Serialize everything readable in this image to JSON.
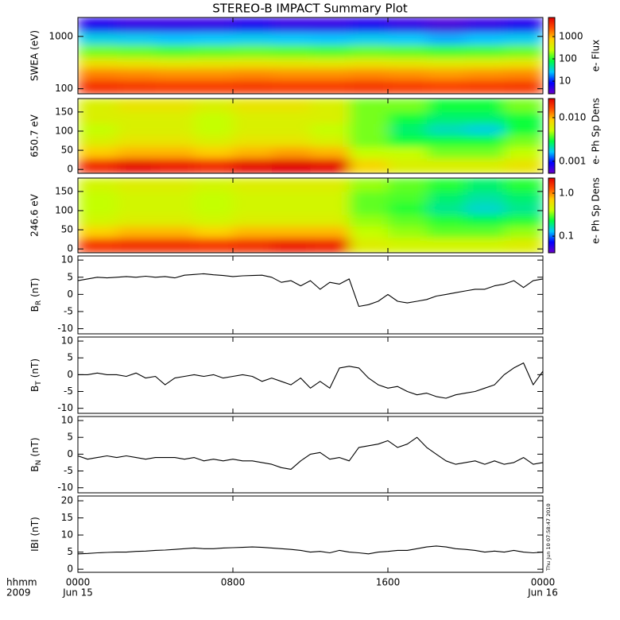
{
  "title": "STEREO-B IMPACT Summary Plot",
  "timestamp": "Thu Jun 10 07:58:47 2010",
  "xaxis": {
    "xlim": [
      0,
      24
    ],
    "xticks": [
      {
        "value": 0,
        "label": "0000"
      },
      {
        "value": 8,
        "label": "0800"
      },
      {
        "value": 16,
        "label": "1600"
      },
      {
        "value": 24,
        "label": "0000"
      }
    ],
    "dates": [
      {
        "value": 0,
        "label": "Jun 15"
      },
      {
        "value": 24,
        "label": "Jun 16"
      }
    ],
    "caption": [
      "hhmm",
      "2009"
    ]
  },
  "chart_data": [
    {
      "type": "heatmap",
      "ylabel": "SWEA (eV)",
      "ylog": true,
      "ylim": [
        80,
        2300
      ],
      "yticks": [
        100,
        1000
      ],
      "xbins": [
        0,
        2,
        4,
        6,
        8,
        10,
        12,
        14,
        16,
        18,
        20,
        22,
        24
      ],
      "ybins": [
        80,
        150,
        250,
        400,
        700,
        1200,
        2300
      ],
      "z": [
        [
          3500,
          3200,
          3000,
          3000,
          3200,
          3000,
          3000,
          3300,
          3000,
          2800,
          3000,
          3200
        ],
        [
          1500,
          1400,
          1300,
          1300,
          1400,
          1300,
          1300,
          1400,
          1300,
          1200,
          1300,
          1400
        ],
        [
          500,
          450,
          400,
          420,
          450,
          420,
          400,
          450,
          420,
          380,
          400,
          450
        ],
        [
          150,
          140,
          120,
          130,
          140,
          130,
          120,
          140,
          130,
          110,
          120,
          140
        ],
        [
          30,
          28,
          25,
          26,
          28,
          26,
          25,
          28,
          26,
          22,
          25,
          28
        ],
        [
          6,
          5,
          5,
          5,
          6,
          5,
          5,
          6,
          5,
          4,
          5,
          6
        ]
      ],
      "zlim": [
        2.7,
        7200
      ],
      "zlog": true,
      "zticks": [
        10,
        100,
        1000
      ],
      "zlabel": "e- Flux",
      "colormap": [
        "#6a00c8",
        "#0000ff",
        "#00c8ff",
        "#00ff40",
        "#c8ff00",
        "#ffd000",
        "#ff5000",
        "#e00000"
      ]
    },
    {
      "type": "heatmap",
      "ylabel": "650.7 eV",
      "ylog": false,
      "ylim": [
        -10,
        185
      ],
      "yticks": [
        0,
        50,
        100,
        150
      ],
      "xbins": [
        0,
        2,
        4,
        6,
        8,
        10,
        12,
        14,
        16,
        18,
        20,
        22,
        24
      ],
      "ybins": [
        -10,
        30,
        60,
        90,
        120,
        150,
        185
      ],
      "z": [
        [
          0.02,
          0.025,
          0.022,
          0.02,
          0.025,
          0.028,
          0.025,
          0.008,
          0.006,
          0.006,
          0.006,
          0.007
        ],
        [
          0.009,
          0.01,
          0.01,
          0.009,
          0.01,
          0.011,
          0.01,
          0.005,
          0.005,
          0.004,
          0.004,
          0.005
        ],
        [
          0.006,
          0.007,
          0.007,
          0.006,
          0.007,
          0.007,
          0.006,
          0.004,
          0.003,
          0.003,
          0.003,
          0.004
        ],
        [
          0.005,
          0.006,
          0.006,
          0.005,
          0.006,
          0.006,
          0.005,
          0.004,
          0.0025,
          0.002,
          0.0018,
          0.003
        ],
        [
          0.006,
          0.006,
          0.006,
          0.005,
          0.006,
          0.006,
          0.006,
          0.004,
          0.003,
          0.0025,
          0.0025,
          0.003
        ],
        [
          0.006,
          0.007,
          0.007,
          0.006,
          0.007,
          0.007,
          0.006,
          0.004,
          0.004,
          0.003,
          0.003,
          0.004
        ]
      ],
      "zlim": [
        0.00053,
        0.0273
      ],
      "zlog": true,
      "zticks": [
        0.001,
        {
          "value": 0.01,
          "label": "0.010"
        }
      ],
      "zlabel": "e- Ph Sp Dens",
      "colormap": [
        "#6a00c8",
        "#0000ff",
        "#00c8ff",
        "#00ff40",
        "#c8ff00",
        "#ffd000",
        "#ff5000",
        "#e00000"
      ]
    },
    {
      "type": "heatmap",
      "ylabel": "246.6 eV",
      "ylog": false,
      "ylim": [
        -10,
        185
      ],
      "yticks": [
        0,
        50,
        100,
        150
      ],
      "xbins": [
        0,
        2,
        4,
        6,
        8,
        10,
        12,
        14,
        16,
        18,
        20,
        22,
        24
      ],
      "ybins": [
        -10,
        30,
        60,
        90,
        120,
        150,
        185
      ],
      "z": [
        [
          1.5,
          1.6,
          1.6,
          1.5,
          1.6,
          1.8,
          1.7,
          0.5,
          0.45,
          0.45,
          0.45,
          0.5
        ],
        [
          0.7,
          0.8,
          0.8,
          0.7,
          0.8,
          0.8,
          0.8,
          0.4,
          0.35,
          0.3,
          0.3,
          0.35
        ],
        [
          0.45,
          0.5,
          0.5,
          0.45,
          0.5,
          0.5,
          0.5,
          0.35,
          0.3,
          0.25,
          0.22,
          0.25
        ],
        [
          0.4,
          0.45,
          0.45,
          0.4,
          0.45,
          0.45,
          0.45,
          0.3,
          0.25,
          0.18,
          0.15,
          0.18
        ],
        [
          0.4,
          0.45,
          0.45,
          0.4,
          0.45,
          0.45,
          0.45,
          0.3,
          0.28,
          0.2,
          0.17,
          0.2
        ],
        [
          0.45,
          0.5,
          0.5,
          0.45,
          0.5,
          0.5,
          0.5,
          0.35,
          0.3,
          0.25,
          0.2,
          0.25
        ]
      ],
      "zlim": [
        0.041,
        2.25
      ],
      "zlog": true,
      "zticks": [
        0.1,
        {
          "value": 1,
          "label": "1.0"
        }
      ],
      "zlabel": "e- Ph Sp Dens",
      "colormap": [
        "#6a00c8",
        "#0000ff",
        "#00c8ff",
        "#00ff40",
        "#c8ff00",
        "#ffd000",
        "#ff5000",
        "#e00000"
      ]
    },
    {
      "type": "line",
      "ylabel": {
        "base": "B",
        "sub": "R",
        "unit": "(nT)"
      },
      "ylim": [
        -11.5,
        11.2
      ],
      "yticks": [
        -10,
        -5,
        0,
        5,
        10
      ],
      "color": "#000000",
      "x": [
        0,
        0.5,
        1,
        1.5,
        2,
        2.5,
        3,
        3.5,
        4,
        4.5,
        5,
        5.5,
        6,
        6.5,
        7,
        7.5,
        8,
        8.5,
        9,
        9.5,
        10,
        10.5,
        11,
        11.5,
        12,
        12.5,
        13,
        13.5,
        14,
        14.5,
        15,
        15.5,
        16,
        16.5,
        17,
        17.5,
        18,
        18.5,
        19,
        19.5,
        20,
        20.5,
        21,
        21.5,
        22,
        22.5,
        23,
        23.5,
        24
      ],
      "values": [
        4,
        4.5,
        5,
        4.8,
        5,
        5.2,
        5,
        5.3,
        5,
        5.2,
        4.8,
        5.6,
        5.8,
        6,
        5.7,
        5.5,
        5.2,
        5.4,
        5.5,
        5.6,
        5,
        3.5,
        4,
        2.5,
        4,
        1.5,
        3.5,
        3,
        4.5,
        -3.5,
        -3,
        -2,
        0,
        -2,
        -2.5,
        -2,
        -1.5,
        -0.5,
        0,
        0.5,
        1,
        1.5,
        1.5,
        2.5,
        3,
        4,
        2,
        4,
        4.5
      ]
    },
    {
      "type": "line",
      "ylabel": {
        "base": "B",
        "sub": "T",
        "unit": "(nT)"
      },
      "ylim": [
        -11.5,
        11.2
      ],
      "yticks": [
        -10,
        -5,
        0,
        5,
        10
      ],
      "color": "#000000",
      "x": [
        0,
        0.5,
        1,
        1.5,
        2,
        2.5,
        3,
        3.5,
        4,
        4.5,
        5,
        5.5,
        6,
        6.5,
        7,
        7.5,
        8,
        8.5,
        9,
        9.5,
        10,
        10.5,
        11,
        11.5,
        12,
        12.5,
        13,
        13.5,
        14,
        14.5,
        15,
        15.5,
        16,
        16.5,
        17,
        17.5,
        18,
        18.5,
        19,
        19.5,
        20,
        20.5,
        21,
        21.5,
        22,
        22.5,
        23,
        23.5,
        24
      ],
      "values": [
        0,
        0,
        0.5,
        0,
        0,
        -0.5,
        0.5,
        -1,
        -0.5,
        -3,
        -1,
        -0.5,
        0,
        -0.5,
        0,
        -1,
        -0.5,
        0,
        -0.5,
        -2,
        -1,
        -2,
        -3,
        -1,
        -4,
        -2,
        -4,
        2,
        2.5,
        2,
        -1,
        -3,
        -4,
        -3.5,
        -5,
        -6,
        -5.5,
        -6.5,
        -7,
        -6,
        -5.5,
        -5,
        -4,
        -3,
        0,
        2,
        3.5,
        -3,
        1
      ]
    },
    {
      "type": "line",
      "ylabel": {
        "base": "B",
        "sub": "N",
        "unit": "(nT)"
      },
      "ylim": [
        -11.5,
        11.2
      ],
      "yticks": [
        -10,
        -5,
        0,
        5,
        10
      ],
      "color": "#000000",
      "x": [
        0,
        0.5,
        1,
        1.5,
        2,
        2.5,
        3,
        3.5,
        4,
        4.5,
        5,
        5.5,
        6,
        6.5,
        7,
        7.5,
        8,
        8.5,
        9,
        9.5,
        10,
        10.5,
        11,
        11.5,
        12,
        12.5,
        13,
        13.5,
        14,
        14.5,
        15,
        15.5,
        16,
        16.5,
        17,
        17.5,
        18,
        18.5,
        19,
        19.5,
        20,
        20.5,
        21,
        21.5,
        22,
        22.5,
        23,
        23.5,
        24
      ],
      "values": [
        -0.5,
        -1.5,
        -1,
        -0.5,
        -1,
        -0.5,
        -1,
        -1.5,
        -1,
        -1,
        -1,
        -1.5,
        -1,
        -2,
        -1.5,
        -2,
        -1.5,
        -2,
        -2,
        -2.5,
        -3,
        -4,
        -4.5,
        -2,
        0,
        0.5,
        -1.5,
        -1,
        -2,
        2,
        2.5,
        3,
        4,
        2,
        3,
        5,
        2,
        0,
        -2,
        -3,
        -2.5,
        -2,
        -3,
        -2,
        -3,
        -2.5,
        -1,
        -3,
        -2.5
      ]
    },
    {
      "type": "line",
      "ylabel": {
        "base": "IBI",
        "unit": "(nT)"
      },
      "ylim": [
        -0.9,
        21.4
      ],
      "yticks": [
        0,
        5,
        10,
        15,
        20
      ],
      "color": "#000000",
      "x": [
        0,
        0.5,
        1,
        1.5,
        2,
        2.5,
        3,
        3.5,
        4,
        4.5,
        5,
        5.5,
        6,
        6.5,
        7,
        7.5,
        8,
        8.5,
        9,
        9.5,
        10,
        10.5,
        11,
        11.5,
        12,
        12.5,
        13,
        13.5,
        14,
        14.5,
        15,
        15.5,
        16,
        16.5,
        17,
        17.5,
        18,
        18.5,
        19,
        19.5,
        20,
        20.5,
        21,
        21.5,
        22,
        22.5,
        23,
        23.5,
        24
      ],
      "values": [
        4.5,
        4.6,
        4.8,
        4.9,
        5,
        5,
        5.2,
        5.3,
        5.5,
        5.6,
        5.8,
        6,
        6.2,
        6,
        6,
        6.2,
        6.3,
        6.4,
        6.5,
        6.4,
        6.2,
        6,
        5.8,
        5.5,
        5,
        5.2,
        4.8,
        5.5,
        5,
        4.8,
        4.5,
        5,
        5.2,
        5.5,
        5.5,
        6,
        6.5,
        6.8,
        6.5,
        6,
        5.8,
        5.5,
        5,
        5.3,
        5,
        5.5,
        5,
        4.8,
        5
      ]
    }
  ]
}
